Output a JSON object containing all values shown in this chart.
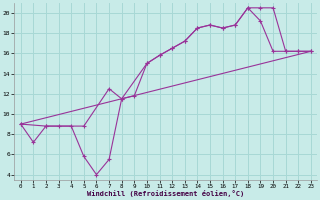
{
  "xlabel": "Windchill (Refroidissement éolien,°C)",
  "background_color": "#c8ebe8",
  "grid_color": "#a8d8d5",
  "line_color": "#993399",
  "xlim": [
    -0.5,
    23.5
  ],
  "ylim": [
    3.5,
    21.0
  ],
  "yticks": [
    4,
    6,
    8,
    10,
    12,
    14,
    16,
    18,
    20
  ],
  "xticks": [
    0,
    1,
    2,
    3,
    4,
    5,
    6,
    7,
    8,
    9,
    10,
    11,
    12,
    13,
    14,
    15,
    16,
    17,
    18,
    19,
    20,
    21,
    22,
    23
  ],
  "line1_x": [
    0,
    1,
    2,
    3,
    4,
    5,
    6,
    7,
    8,
    9,
    10,
    11,
    12,
    13,
    14,
    15,
    16,
    17,
    18,
    19,
    20,
    21,
    22,
    23
  ],
  "line1_y": [
    9.0,
    7.2,
    8.8,
    8.8,
    8.8,
    5.8,
    4.0,
    5.5,
    11.5,
    11.8,
    15.0,
    15.8,
    16.5,
    17.2,
    18.5,
    18.8,
    18.5,
    18.8,
    20.5,
    20.5,
    20.5,
    16.2,
    16.2,
    16.2
  ],
  "line2_x": [
    0,
    2,
    5,
    7,
    8,
    10,
    11,
    12,
    13,
    14,
    15,
    16,
    17,
    18,
    19,
    20,
    21,
    22,
    23
  ],
  "line2_y": [
    9.0,
    8.8,
    8.8,
    12.5,
    11.5,
    15.0,
    15.8,
    16.5,
    17.2,
    18.5,
    18.8,
    18.5,
    18.8,
    20.5,
    19.2,
    16.2,
    16.2,
    16.2,
    16.2
  ],
  "line3_x": [
    0,
    23
  ],
  "line3_y": [
    9.0,
    16.2
  ]
}
